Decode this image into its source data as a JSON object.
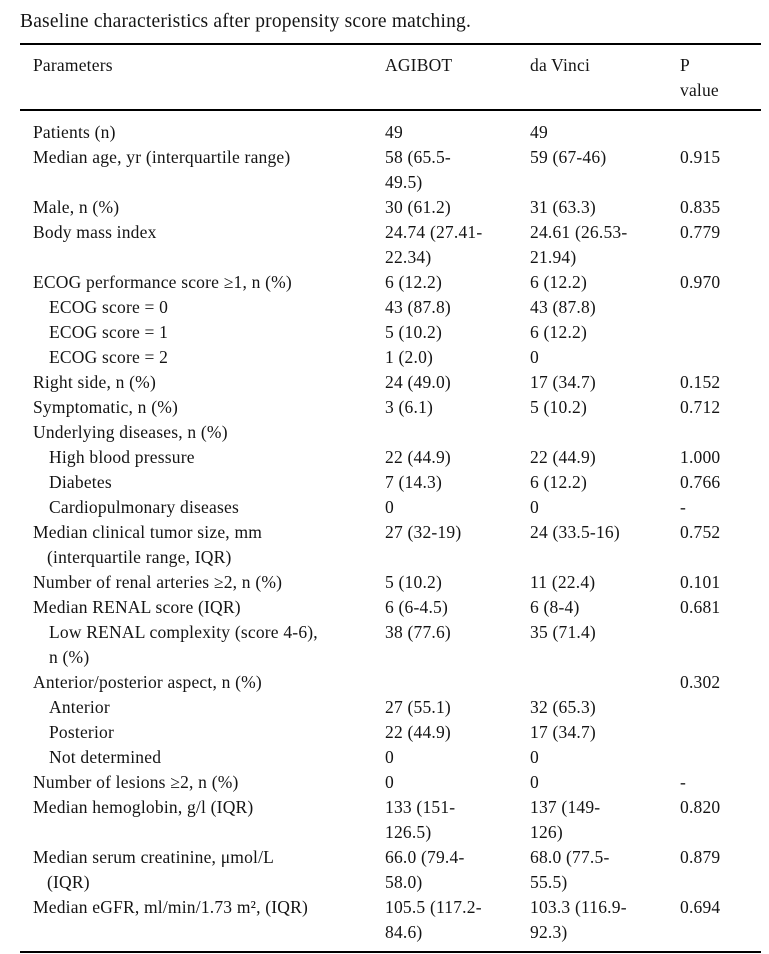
{
  "title": "Baseline characteristics after propensity score matching.",
  "table": {
    "header": {
      "parameters": "Parameters",
      "agibot": "AGIBOT",
      "davinci": "da Vinci",
      "p": "P\nvalue"
    },
    "rows": [
      {
        "param": "Patients (n)",
        "indent": 0,
        "agibot": "49",
        "davinci": "49",
        "p": ""
      },
      {
        "param": "Median age, yr (interquartile range)",
        "indent": 0,
        "agibot": "58 (65.5-\n49.5)",
        "davinci": "59 (67-46)",
        "p": "0.915"
      },
      {
        "param": "Male, n (%)",
        "indent": 0,
        "agibot": "30 (61.2)",
        "davinci": "31 (63.3)",
        "p": "0.835"
      },
      {
        "param": "Body mass index",
        "indent": 0,
        "agibot": "24.74 (27.41-\n22.34)",
        "davinci": "24.61 (26.53-\n21.94)",
        "p": "0.779"
      },
      {
        "param": "ECOG performance score ≥1, n (%)",
        "indent": 0,
        "agibot": "6 (12.2)",
        "davinci": "6 (12.2)",
        "p": "0.970"
      },
      {
        "param": "ECOG score = 0",
        "indent": 1,
        "agibot": "43 (87.8)",
        "davinci": "43 (87.8)",
        "p": ""
      },
      {
        "param": "ECOG score = 1",
        "indent": 1,
        "agibot": "5 (10.2)",
        "davinci": "6 (12.2)",
        "p": ""
      },
      {
        "param": "ECOG score = 2",
        "indent": 1,
        "agibot": "1 (2.0)",
        "davinci": "0",
        "p": ""
      },
      {
        "param": "Right side, n (%)",
        "indent": 0,
        "agibot": "24 (49.0)",
        "davinci": "17 (34.7)",
        "p": "0.152"
      },
      {
        "param": "Symptomatic, n (%)",
        "indent": 0,
        "agibot": "3 (6.1)",
        "davinci": "5 (10.2)",
        "p": "0.712"
      },
      {
        "param": "Underlying diseases, n (%)",
        "indent": 0,
        "agibot": "",
        "davinci": "",
        "p": ""
      },
      {
        "param": "High blood pressure",
        "indent": 1,
        "agibot": "22 (44.9)",
        "davinci": "22 (44.9)",
        "p": "1.000"
      },
      {
        "param": "Diabetes",
        "indent": 1,
        "agibot": "7 (14.3)",
        "davinci": "6 (12.2)",
        "p": "0.766"
      },
      {
        "param": "Cardiopulmonary diseases",
        "indent": 1,
        "agibot": "0",
        "davinci": "0",
        "p": "-"
      },
      {
        "param": "Median clinical tumor size, mm\n(interquartile range, IQR)",
        "indent": 0,
        "agibot": "27 (32-19)",
        "davinci": "24 (33.5-16)",
        "p": "0.752"
      },
      {
        "param": "Number of renal arteries ≥2, n (%)",
        "indent": 0,
        "agibot": "5 (10.2)",
        "davinci": "11 (22.4)",
        "p": "0.101"
      },
      {
        "param": "Median RENAL score (IQR)",
        "indent": 0,
        "agibot": "6 (6-4.5)",
        "davinci": "6 (8-4)",
        "p": "0.681"
      },
      {
        "param": "Low RENAL complexity (score 4-6),\nn (%)",
        "indent": 1,
        "agibot": "38 (77.6)",
        "davinci": "35 (71.4)",
        "p": ""
      },
      {
        "param": "Anterior/posterior aspect, n (%)",
        "indent": 0,
        "agibot": "",
        "davinci": "",
        "p": "0.302"
      },
      {
        "param": "Anterior",
        "indent": 1,
        "agibot": "27 (55.1)",
        "davinci": "32 (65.3)",
        "p": ""
      },
      {
        "param": "Posterior",
        "indent": 1,
        "agibot": "22 (44.9)",
        "davinci": "17 (34.7)",
        "p": ""
      },
      {
        "param": "Not determined",
        "indent": 1,
        "agibot": "0",
        "davinci": "0",
        "p": ""
      },
      {
        "param": "Number of lesions ≥2, n (%)",
        "indent": 0,
        "agibot": "0",
        "davinci": "0",
        "p": "-"
      },
      {
        "param": "Median hemoglobin, g/l (IQR)",
        "indent": 0,
        "agibot": "133 (151-\n126.5)",
        "davinci": "137 (149-\n126)",
        "p": "0.820"
      },
      {
        "param": "Median serum creatinine, μmol/L\n(IQR)",
        "indent": 0,
        "agibot": "66.0 (79.4-\n58.0)",
        "davinci": "68.0 (77.5-\n55.5)",
        "p": "0.879"
      },
      {
        "param": "Median eGFR, ml/min/1.73 m², (IQR)",
        "indent": 0,
        "agibot": "105.5 (117.2-\n84.6)",
        "davinci": "103.3 (116.9-\n92.3)",
        "p": "0.694"
      }
    ]
  }
}
